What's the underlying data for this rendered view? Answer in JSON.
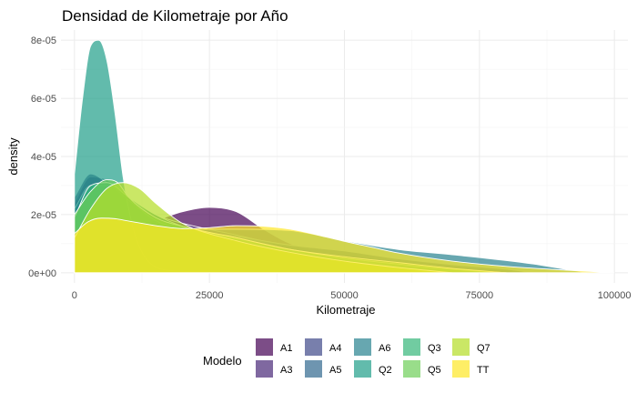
{
  "chart_data": {
    "type": "area",
    "title": "Densidad de Kilometraje por Año",
    "xlabel": "Kilometraje",
    "ylabel": "density",
    "xlim": [
      -2500,
      102500
    ],
    "ylim": [
      -3.5e-06,
      8.35e-05
    ],
    "x_ticks": [
      0,
      25000,
      50000,
      75000,
      100000
    ],
    "x_tick_labels": [
      "0",
      "25000",
      "50000",
      "75000",
      "100000"
    ],
    "y_ticks": [
      0,
      2e-05,
      4e-05,
      6e-05,
      8e-05
    ],
    "y_tick_labels": [
      "0e+00",
      "2e-05",
      "4e-05",
      "6e-05",
      "8e-05"
    ],
    "grid": true,
    "legend": {
      "title": "Modelo",
      "position": "bottom"
    },
    "series": [
      {
        "name": "A1",
        "color": "#440154",
        "x": [
          0,
          3000,
          6000,
          10000,
          15000,
          20000,
          25000,
          30000,
          35000,
          40000,
          50000,
          60000,
          70000,
          80000,
          85000
        ],
        "y": [
          2e-06,
          8e-06,
          1.3e-05,
          1.6e-05,
          1.8e-05,
          2.1e-05,
          2.25e-05,
          2.1e-05,
          1.5e-05,
          1e-05,
          5.5e-06,
          3.5e-06,
          1.8e-06,
          5e-07,
          0
        ]
      },
      {
        "name": "A3",
        "color": "#482878",
        "x": [
          0,
          3000,
          6000,
          10000,
          15000,
          20000,
          30000,
          40000,
          50000,
          60000,
          70000,
          80000,
          85000
        ],
        "y": [
          2.4e-05,
          3.3e-05,
          3.2e-05,
          2.6e-05,
          2e-05,
          1.7e-05,
          1.3e-05,
          9e-06,
          7.5e-06,
          4.5e-06,
          2.5e-06,
          1e-06,
          0
        ]
      },
      {
        "name": "A4",
        "color": "#3e4989",
        "x": [
          0,
          3000,
          6000,
          10000,
          15000,
          20000,
          30000,
          40000,
          50000,
          60000,
          70000,
          80000,
          85000
        ],
        "y": [
          2.6e-05,
          3.4e-05,
          3.1e-05,
          2.6e-05,
          1.9e-05,
          1.6e-05,
          1.2e-05,
          9.5e-06,
          7.5e-06,
          5e-06,
          3e-06,
          1.2e-06,
          0
        ]
      },
      {
        "name": "A5",
        "color": "#31688e",
        "x": [
          0,
          3000,
          6000,
          10000,
          15000,
          20000,
          30000,
          40000,
          50000,
          60000,
          70000,
          80000,
          85000
        ],
        "y": [
          2.2e-05,
          3e-05,
          3e-05,
          2.5e-05,
          1.8e-05,
          1.5e-05,
          1.25e-05,
          9.5e-06,
          7.5e-06,
          4.8e-06,
          2.8e-06,
          1.2e-06,
          0
        ]
      },
      {
        "name": "A6",
        "color": "#26828e",
        "x": [
          0,
          5000,
          10000,
          15000,
          20000,
          30000,
          40000,
          50000,
          60000,
          70000,
          80000,
          85000,
          90000,
          95000
        ],
        "y": [
          1.2e-05,
          1.8e-05,
          1.8e-05,
          1.6e-05,
          1.5e-05,
          1.5e-05,
          1.45e-05,
          1.1e-05,
          8e-06,
          6.2e-06,
          4.2e-06,
          3e-06,
          1.5e-06,
          0
        ]
      },
      {
        "name": "Q2",
        "color": "#1f9e89",
        "x": [
          0,
          1500,
          3000,
          4500,
          6000,
          7500,
          9000,
          10500,
          12000,
          15000,
          20000,
          25000,
          30000
        ],
        "y": [
          3.4e-05,
          6e-05,
          7.8e-05,
          8e-05,
          7.3e-05,
          5.5e-05,
          3.3e-05,
          1.8e-05,
          9e-06,
          2e-06,
          5e-07,
          2e-07,
          0
        ]
      },
      {
        "name": "Q3",
        "color": "#35b779",
        "x": [
          0,
          3000,
          6000,
          10000,
          15000,
          20000,
          30000,
          40000,
          50000,
          60000,
          70000,
          80000
        ],
        "y": [
          1.9e-05,
          3e-05,
          3.1e-05,
          2.6e-05,
          2e-05,
          1.6e-05,
          1.2e-05,
          8e-06,
          5e-06,
          3e-06,
          1.2e-06,
          0
        ]
      },
      {
        "name": "Q5",
        "color": "#6ece58",
        "x": [
          0,
          3000,
          6000,
          8000,
          10000,
          15000,
          20000,
          30000,
          40000,
          50000,
          60000,
          70000,
          80000
        ],
        "y": [
          2e-05,
          2.8e-05,
          3.2e-05,
          3.1e-05,
          2.6e-05,
          1.9e-05,
          1.6e-05,
          1.2e-05,
          8e-06,
          5.5e-06,
          3.5e-06,
          1.5e-06,
          0
        ]
      },
      {
        "name": "Q7",
        "color": "#b5de2b",
        "x": [
          0,
          3000,
          6000,
          9000,
          12000,
          15000,
          20000,
          30000,
          40000,
          50000,
          60000,
          70000
        ],
        "y": [
          1.2e-05,
          2.2e-05,
          2.9e-05,
          3.1e-05,
          2.9e-05,
          2.4e-05,
          1.7e-05,
          1.1e-05,
          7e-06,
          4e-06,
          1.8e-06,
          0
        ],
        "alpha": 0.72
      },
      {
        "name": "TT",
        "color": "#fde725",
        "x": [
          0,
          2500,
          5000,
          7500,
          10000,
          15000,
          20000,
          25000,
          30000,
          35000,
          40000,
          45000,
          50000,
          55000,
          60000,
          70000,
          80000,
          90000,
          95000,
          100000
        ],
        "y": [
          1.35e-05,
          1.75e-05,
          1.88e-05,
          1.86e-05,
          1.78e-05,
          1.62e-05,
          1.52e-05,
          1.55e-05,
          1.62e-05,
          1.6e-05,
          1.5e-05,
          1.3e-05,
          1.08e-05,
          8.8e-06,
          6.8e-06,
          4e-06,
          2.2e-06,
          1e-06,
          5e-07,
          0
        ]
      }
    ]
  }
}
